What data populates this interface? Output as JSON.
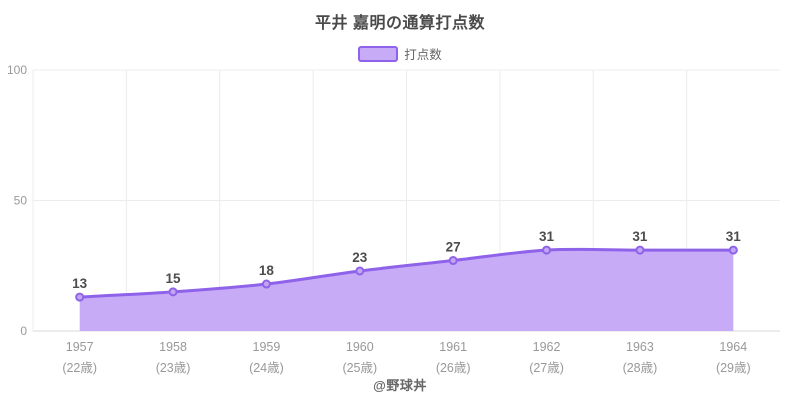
{
  "header": {
    "title": "平井 嘉明の通算打点数"
  },
  "legend": {
    "items": [
      {
        "label": "打点数",
        "fill": "#c7abf6",
        "border": "#8f63e9"
      }
    ]
  },
  "footer": {
    "credit": "@野球丼"
  },
  "colors": {
    "line": "#8f63e9",
    "area": "#c7abf6",
    "marker_fill": "#c3a6f2",
    "grid": "#ececec",
    "axis_line": "#d9d9d9",
    "tick_label": "#999999",
    "value_label": "#4d4d4d",
    "title": "#4a4a4a",
    "legend_text": "#666666",
    "footer_text": "#666666"
  },
  "chart_data": {
    "type": "area",
    "title": "平井 嘉明の通算打点数",
    "series_name": "打点数",
    "categories": [
      "1957",
      "1958",
      "1959",
      "1960",
      "1961",
      "1962",
      "1963",
      "1964"
    ],
    "category_sublabels": [
      "(22歳)",
      "(23歳)",
      "(24歳)",
      "(25歳)",
      "(26歳)",
      "(27歳)",
      "(28歳)",
      "(29歳)"
    ],
    "values": [
      13,
      15,
      18,
      23,
      27,
      31,
      31,
      31
    ],
    "ylim": [
      0,
      100
    ],
    "yticks": [
      0,
      50,
      100
    ],
    "grid": true,
    "smooth": true,
    "legend_position": "top",
    "value_labels_shown": true
  }
}
